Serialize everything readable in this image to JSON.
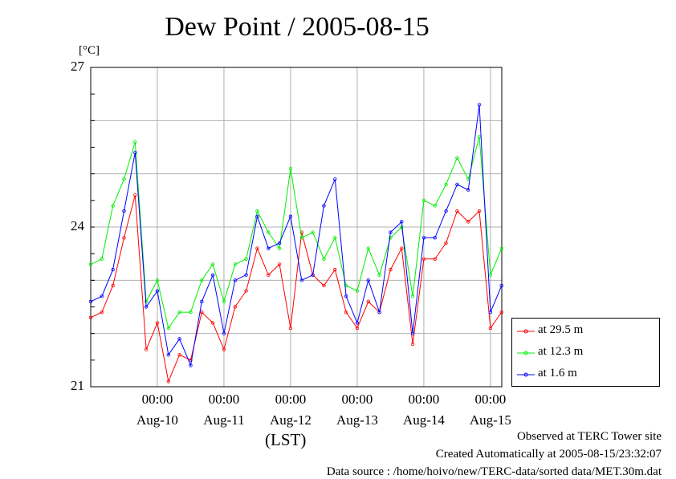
{
  "title": "Dew Point / 2005-08-15",
  "footer": {
    "line1": "Observed at TERC Tower site",
    "line2": "Created Automatically at 2005-08-15/23:32:07",
    "line3": "Data source : /home/hoivo/new/TERC-data/sorted  data/MET.30m.dat"
  },
  "chart_data": {
    "type": "line",
    "title": "Dew Point / 2005-08-15",
    "unit_label": "[°C]",
    "xlabel": "(LST)",
    "ylabel": "",
    "ylim": [
      21,
      27
    ],
    "yticks": [
      "21",
      "24",
      "27"
    ],
    "xlim": [
      0.0,
      6.17
    ],
    "xtick_labels": [
      {
        "time": "00:00",
        "date": "Aug-10",
        "x": 1.0
      },
      {
        "time": "00:00",
        "date": "Aug-11",
        "x": 2.0
      },
      {
        "time": "00:00",
        "date": "Aug-12",
        "x": 3.0
      },
      {
        "time": "00:00",
        "date": "Aug-13",
        "x": 4.0
      },
      {
        "time": "00:00",
        "date": "Aug-14",
        "x": 5.0
      },
      {
        "time": "00:00",
        "date": "Aug-15",
        "x": 6.0
      }
    ],
    "grid": true,
    "legend_position": "bottom-right outside",
    "series": [
      {
        "name": "at 29.5 m",
        "color": "#ff0000",
        "x": [
          0.0,
          0.167,
          0.333,
          0.5,
          0.667,
          0.833,
          1.0,
          1.167,
          1.333,
          1.5,
          1.667,
          1.833,
          2.0,
          2.167,
          2.333,
          2.5,
          2.667,
          2.833,
          3.0,
          3.167,
          3.333,
          3.5,
          3.667,
          3.833,
          4.0,
          4.167,
          4.333,
          4.5,
          4.667,
          4.833,
          5.0,
          5.167,
          5.333,
          5.5,
          5.667,
          5.833,
          6.0,
          6.167
        ],
        "y": [
          22.3,
          22.4,
          22.9,
          23.8,
          24.6,
          21.7,
          22.2,
          21.1,
          21.6,
          21.5,
          22.4,
          22.2,
          21.7,
          22.5,
          22.8,
          23.6,
          23.1,
          23.3,
          22.1,
          23.9,
          23.1,
          22.9,
          23.2,
          22.4,
          22.1,
          22.6,
          22.4,
          23.2,
          23.6,
          21.8,
          23.4,
          23.4,
          23.7,
          24.3,
          24.1,
          24.3,
          22.1,
          22.4
        ]
      },
      {
        "name": "at 12.3 m",
        "color": "#00ee00",
        "x": [
          0.0,
          0.167,
          0.333,
          0.5,
          0.667,
          0.833,
          1.0,
          1.167,
          1.333,
          1.5,
          1.667,
          1.833,
          2.0,
          2.167,
          2.333,
          2.5,
          2.667,
          2.833,
          3.0,
          3.167,
          3.333,
          3.5,
          3.667,
          3.833,
          4.0,
          4.167,
          4.333,
          4.5,
          4.667,
          4.833,
          5.0,
          5.167,
          5.333,
          5.5,
          5.667,
          5.833,
          6.0,
          6.167
        ],
        "y": [
          23.3,
          23.4,
          24.4,
          24.9,
          25.6,
          22.6,
          23.0,
          22.1,
          22.4,
          22.4,
          23.0,
          23.3,
          22.6,
          23.3,
          23.4,
          24.3,
          23.9,
          23.6,
          25.1,
          23.8,
          23.9,
          23.4,
          23.8,
          22.9,
          22.8,
          23.6,
          23.1,
          23.8,
          24.0,
          22.7,
          24.5,
          24.4,
          24.8,
          25.3,
          24.9,
          25.7,
          23.1,
          23.6
        ]
      },
      {
        "name": "at 1.6 m",
        "color": "#0000ff",
        "x": [
          0.0,
          0.167,
          0.333,
          0.5,
          0.667,
          0.833,
          1.0,
          1.167,
          1.333,
          1.5,
          1.667,
          1.833,
          2.0,
          2.167,
          2.333,
          2.5,
          2.667,
          2.833,
          3.0,
          3.167,
          3.333,
          3.5,
          3.667,
          3.833,
          4.0,
          4.167,
          4.333,
          4.5,
          4.667,
          4.833,
          5.0,
          5.167,
          5.333,
          5.5,
          5.667,
          5.833,
          6.0,
          6.167
        ],
        "y": [
          22.6,
          22.7,
          23.2,
          24.3,
          25.4,
          22.5,
          22.8,
          21.6,
          21.9,
          21.4,
          22.6,
          23.1,
          22.0,
          23.0,
          23.1,
          24.2,
          23.6,
          23.7,
          24.2,
          23.0,
          23.1,
          24.4,
          24.9,
          22.7,
          22.2,
          23.0,
          22.4,
          23.9,
          24.1,
          22.0,
          23.8,
          23.8,
          24.3,
          24.8,
          24.7,
          26.3,
          22.4,
          22.9
        ]
      }
    ]
  }
}
